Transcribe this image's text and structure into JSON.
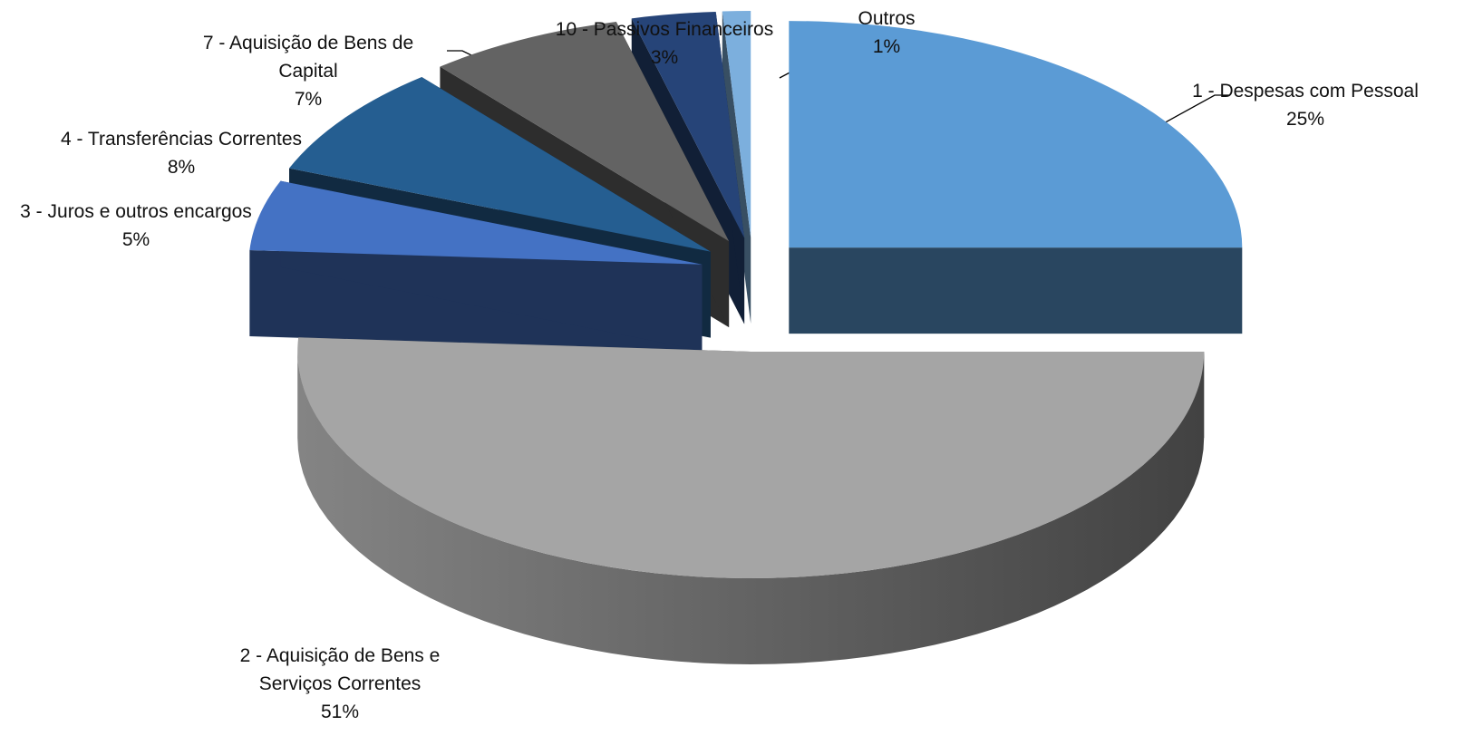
{
  "chart_data": {
    "type": "pie3d",
    "categories": [
      "1 - Despesas com Pessoal",
      "2 - Aquisição de Bens e Serviços Correntes",
      "3 - Juros e outros encargos",
      "4 - Transferências Correntes",
      "7 - Aquisição de Bens de Capital",
      "10 - Passivos Financeiros",
      "Outros"
    ],
    "values": [
      25,
      51,
      5,
      8,
      7,
      3,
      1
    ],
    "value_labels": [
      "25%",
      "51%",
      "5%",
      "8%",
      "7%",
      "3%",
      "1%"
    ],
    "colors": [
      "#5b9bd5",
      "#a5a5a5",
      "#4472c4",
      "#255e91",
      "#636363",
      "#264478",
      "#7cafdd"
    ]
  }
}
